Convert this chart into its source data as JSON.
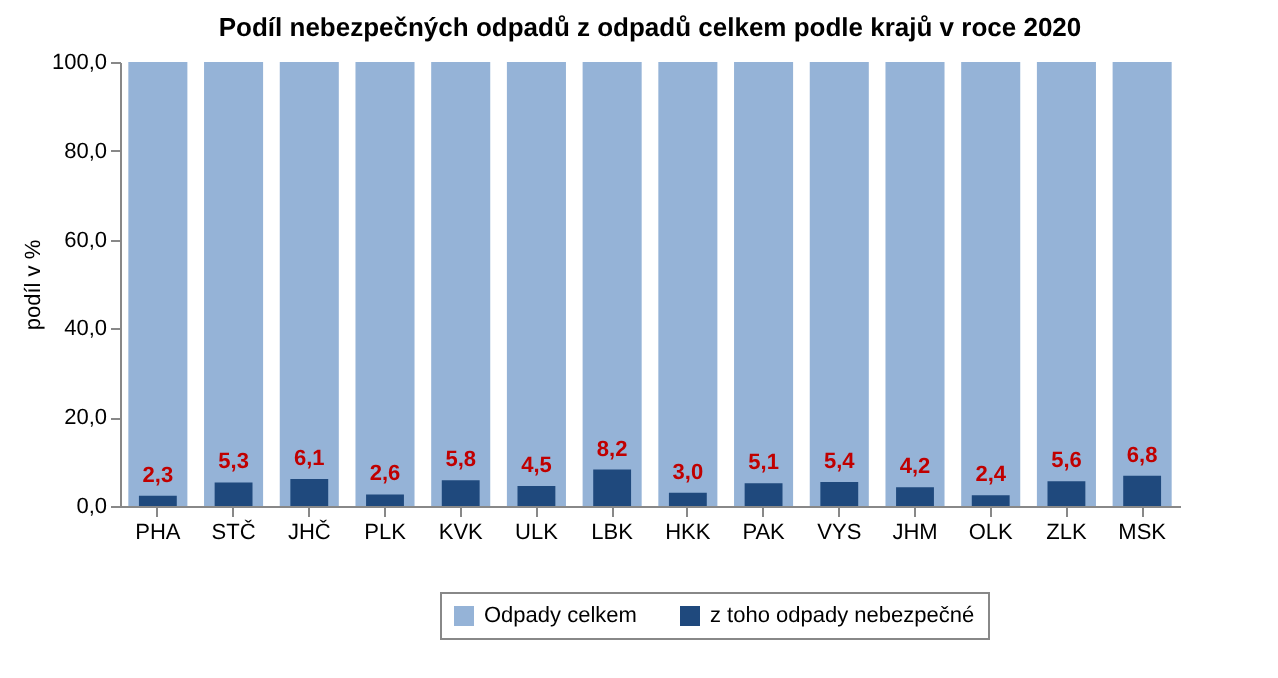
{
  "chart_data": {
    "type": "bar",
    "title": "Podíl nebezpečných odpadů z odpadů celkem podle krajů v roce 2020",
    "ylabel": "podíl v %",
    "categories": [
      "PHA",
      "STČ",
      "JHČ",
      "PLK",
      "KVK",
      "ULK",
      "LBK",
      "HKK",
      "PAK",
      "VYS",
      "JHM",
      "OLK",
      "ZLK",
      "MSK"
    ],
    "series": [
      {
        "name": "Odpady celkem",
        "color": "#95b3d7",
        "values": [
          100,
          100,
          100,
          100,
          100,
          100,
          100,
          100,
          100,
          100,
          100,
          100,
          100,
          100
        ]
      },
      {
        "name": "z toho odpady nebezpečné",
        "color": "#1f497d",
        "values": [
          2.3,
          5.3,
          6.1,
          2.6,
          5.8,
          4.5,
          8.2,
          3.0,
          5.1,
          5.4,
          4.2,
          2.4,
          5.6,
          6.8
        ],
        "value_labels": [
          "2,3",
          "5,3",
          "6,1",
          "2,6",
          "5,8",
          "4,5",
          "8,2",
          "3,0",
          "5,1",
          "5,4",
          "4,2",
          "2,4",
          "5,6",
          "6,8"
        ]
      }
    ],
    "ylim": [
      0,
      100
    ],
    "yticks": [
      {
        "value": 0,
        "label": "0,0"
      },
      {
        "value": 20,
        "label": "20,0"
      },
      {
        "value": 40,
        "label": "40,0"
      },
      {
        "value": 60,
        "label": "60,0"
      },
      {
        "value": 80,
        "label": "80,0"
      },
      {
        "value": 100,
        "label": "100,0"
      }
    ],
    "grid": false,
    "legend": "bottom"
  }
}
